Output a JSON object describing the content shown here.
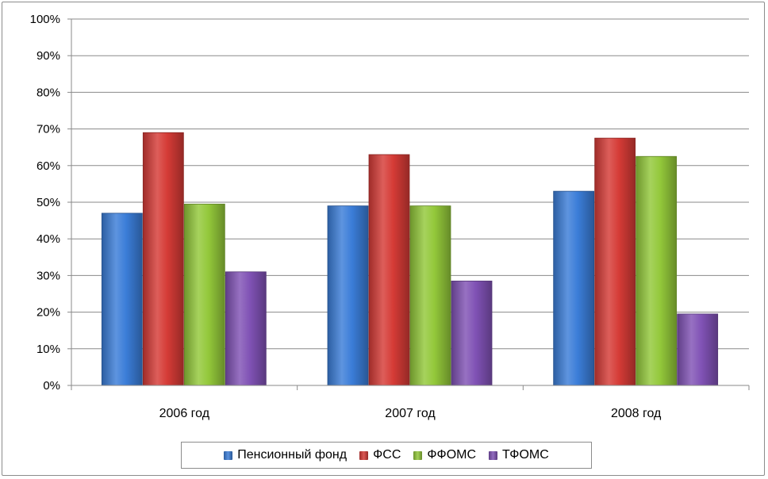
{
  "chart_data": {
    "type": "bar",
    "categories": [
      "2006 год",
      "2007 год",
      "2008 год"
    ],
    "series": [
      {
        "name": "Пенсионный фонд",
        "color": "#3b7dd8",
        "values": [
          47,
          49,
          53
        ]
      },
      {
        "name": "ФСС",
        "color": "#d53b36",
        "values": [
          69,
          63,
          67.5
        ]
      },
      {
        "name": "ФФОМС",
        "color": "#93c83a",
        "values": [
          49.5,
          49,
          62.5
        ]
      },
      {
        "name": "ТФОМС",
        "color": "#8052b5",
        "values": [
          31,
          28.5,
          19.5
        ]
      }
    ],
    "ylim": [
      0,
      100
    ],
    "yticks": [
      "0%",
      "10%",
      "20%",
      "30%",
      "40%",
      "50%",
      "60%",
      "70%",
      "80%",
      "90%",
      "100%"
    ],
    "title": "",
    "xlabel": "",
    "ylabel": "",
    "grid": true,
    "legend_position": "bottom"
  }
}
